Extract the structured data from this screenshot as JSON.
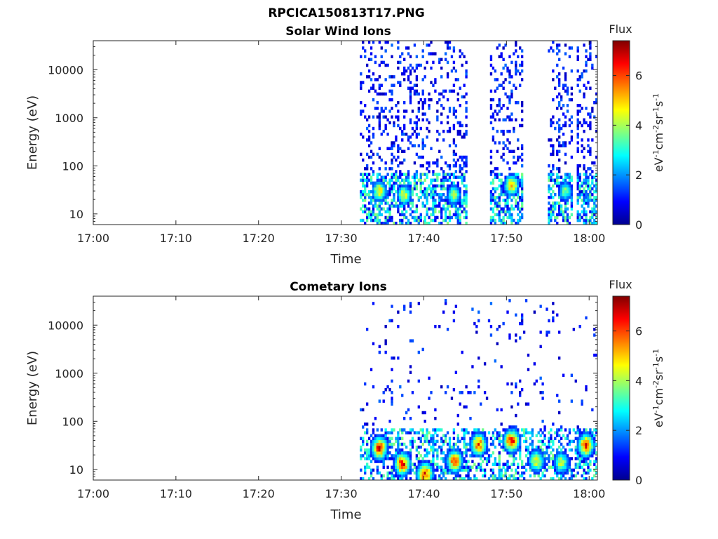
{
  "figure": {
    "title": "RPCICA150813T17.PNG"
  },
  "colors": {
    "axis": "#262626",
    "colormap": "jet",
    "colormap_stops": [
      "#00008f",
      "#0000ff",
      "#0080ff",
      "#00ffff",
      "#80ff80",
      "#ffff00",
      "#ff8000",
      "#ff0000",
      "#800000"
    ]
  },
  "chart_data": [
    {
      "type": "heatmap",
      "title": "Solar Wind Ions",
      "xlabel": "Time",
      "ylabel": "Energy (eV)",
      "x_ticks": [
        "17:00",
        "17:10",
        "17:20",
        "17:30",
        "17:40",
        "17:50",
        "18:00"
      ],
      "y_ticks": [
        "10",
        "100",
        "1000",
        "10000"
      ],
      "y_scale": "log",
      "ylim": [
        6,
        40000
      ],
      "xlim_minutes": [
        0,
        61
      ],
      "colorbar": {
        "title": "Flux",
        "ticks": [
          "0",
          "2",
          "4",
          "6"
        ],
        "range": [
          0,
          7.4
        ],
        "unit_html": "eV<tspan baseline-shift='super' font-size='11'>-1</tspan>cm<tspan baseline-shift='super' font-size='11'>-2</tspan>sr<tspan baseline-shift='super' font-size='11'>-1</tspan>s<tspan baseline-shift='super' font-size='11'>-1</tspan>"
      },
      "data_coverage_minutes": [
        [
          32.2,
          45.2
        ],
        [
          48.0,
          52.0
        ],
        [
          55.0,
          58.0
        ],
        [
          58.5,
          61.0
        ]
      ],
      "hotspots": [
        {
          "minute": 34.5,
          "energy_ev": 30,
          "flux": 5.5
        },
        {
          "minute": 37.5,
          "energy_ev": 25,
          "flux": 5.0
        },
        {
          "minute": 43.5,
          "energy_ev": 25,
          "flux": 4.5
        },
        {
          "minute": 50.5,
          "energy_ev": 40,
          "flux": 6.0
        },
        {
          "minute": 57.0,
          "energy_ev": 30,
          "flux": 4.0
        }
      ]
    },
    {
      "type": "heatmap",
      "title": "Cometary Ions",
      "xlabel": "Time",
      "ylabel": "Energy (eV)",
      "x_ticks": [
        "17:00",
        "17:10",
        "17:20",
        "17:30",
        "17:40",
        "17:50",
        "18:00"
      ],
      "y_ticks": [
        "10",
        "100",
        "1000",
        "10000"
      ],
      "y_scale": "log",
      "ylim": [
        6,
        40000
      ],
      "xlim_minutes": [
        0,
        61
      ],
      "colorbar": {
        "title": "Flux",
        "ticks": [
          "0",
          "2",
          "4",
          "6"
        ],
        "range": [
          0,
          7.4
        ],
        "unit_html": "eV<tspan baseline-shift='super' font-size='11'>-1</tspan>cm<tspan baseline-shift='super' font-size='11'>-2</tspan>sr<tspan baseline-shift='super' font-size='11'>-1</tspan>s<tspan baseline-shift='super' font-size='11'>-1</tspan>"
      },
      "data_coverage_minutes": [
        [
          32.2,
          61.0
        ]
      ],
      "hotspots": [
        {
          "minute": 34.5,
          "energy_ev": 28,
          "flux": 7.0
        },
        {
          "minute": 37.3,
          "energy_ev": 13,
          "flux": 7.0
        },
        {
          "minute": 40.0,
          "energy_ev": 8,
          "flux": 7.0
        },
        {
          "minute": 43.6,
          "energy_ev": 15,
          "flux": 6.5
        },
        {
          "minute": 46.5,
          "energy_ev": 33,
          "flux": 6.5
        },
        {
          "minute": 50.5,
          "energy_ev": 40,
          "flux": 7.0
        },
        {
          "minute": 53.5,
          "energy_ev": 15,
          "flux": 5.0
        },
        {
          "minute": 56.5,
          "energy_ev": 14,
          "flux": 4.5
        },
        {
          "minute": 59.5,
          "energy_ev": 32,
          "flux": 7.0
        }
      ]
    }
  ]
}
